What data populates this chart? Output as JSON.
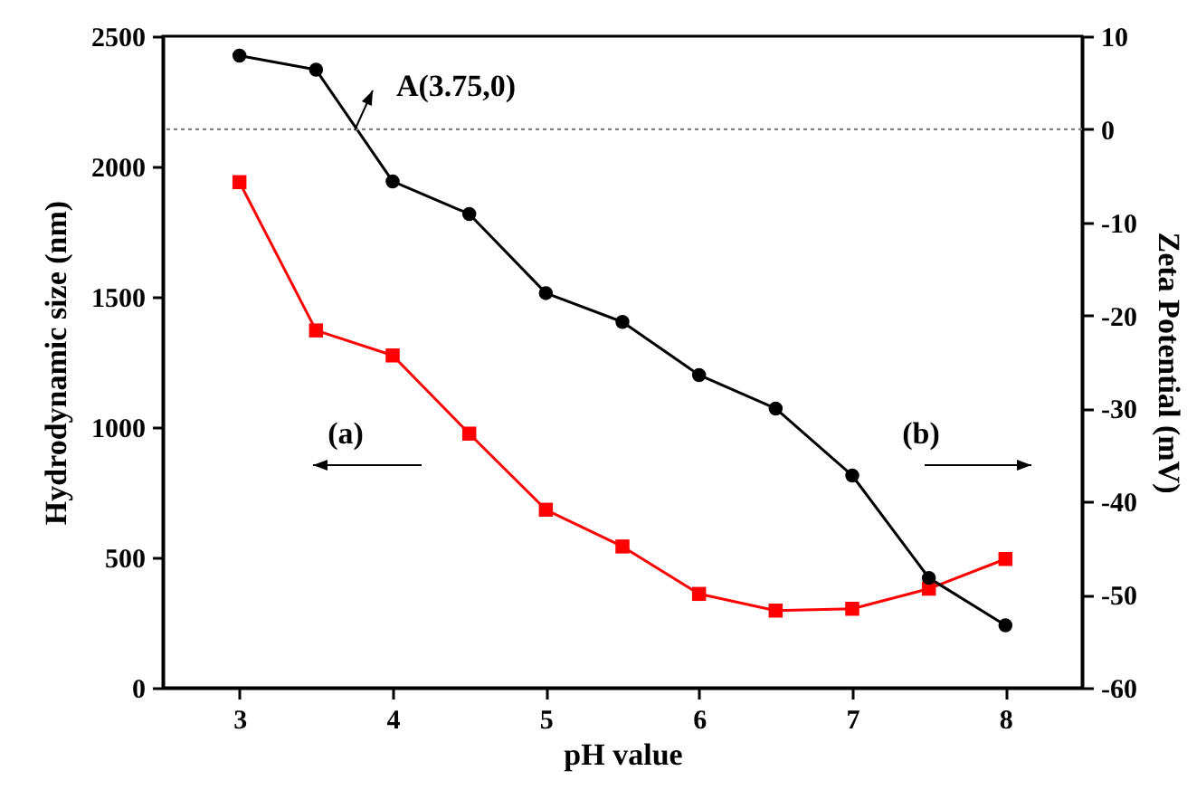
{
  "chart_data": {
    "type": "line",
    "xlabel": "pH value",
    "ylabel": "Hydrodynamic size (nm)",
    "y2label": "Zeta Potential (mV)",
    "x": [
      3,
      3.5,
      4,
      4.5,
      5,
      5.5,
      6,
      6.5,
      7,
      7.5,
      8
    ],
    "series": [
      {
        "color": "#ff0000",
        "marker": "square",
        "values": [
          1940,
          1371,
          1275,
          975,
          683,
          542,
          360,
          296,
          303,
          380,
          494
        ]
      },
      {
        "color": "#000000",
        "marker": "circle",
        "axis": "y2",
        "values": [
          7.9,
          6.4,
          -5.6,
          -9.1,
          -17.6,
          -20.7,
          -26.4,
          -30.0,
          -37.2,
          -48.2,
          -53.3
        ]
      }
    ],
    "xlim": [
      2.5,
      8.5
    ],
    "xticks": [
      3,
      4,
      5,
      6,
      7,
      8
    ],
    "ylim": [
      0,
      2500
    ],
    "yticks": [
      0,
      500,
      1000,
      1500,
      2000,
      2500
    ],
    "y2lim": [
      -60,
      10
    ],
    "y2ticks": [
      -60,
      -50,
      -40,
      -30,
      -20,
      -10,
      0,
      10
    ],
    "ref_lines": [
      {
        "axis": "y2",
        "value": 0,
        "color": "#808080",
        "line_style": "dotted"
      }
    ],
    "annotations": [
      "A(3.75,0)",
      "(a)",
      "(b)"
    ],
    "grid": false
  }
}
